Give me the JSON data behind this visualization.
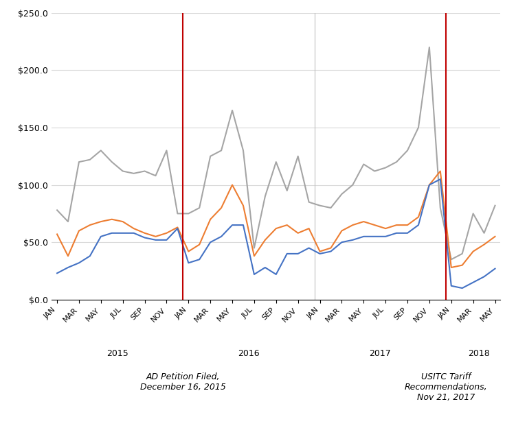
{
  "tick_labels_per_year": [
    "JAN",
    "MAR",
    "MAY",
    "JUL",
    "SEP",
    "NOV"
  ],
  "year_labels": [
    "2015",
    "2016",
    "2017",
    "2018"
  ],
  "vline_positions": [
    11.5,
    35.5
  ],
  "blue": {
    "values": [
      23,
      28,
      32,
      38,
      55,
      58,
      58,
      58,
      54,
      52,
      52,
      62,
      32,
      35,
      50,
      55,
      65,
      65,
      22,
      28,
      22,
      40,
      40,
      45,
      40,
      42,
      50,
      52,
      55,
      55,
      55,
      58,
      58,
      65,
      100,
      105,
      12,
      10,
      15,
      20,
      27
    ],
    "color": "#4472C4"
  },
  "orange": {
    "values": [
      57,
      38,
      60,
      65,
      68,
      70,
      68,
      62,
      58,
      55,
      58,
      63,
      42,
      48,
      70,
      80,
      100,
      82,
      38,
      52,
      62,
      65,
      58,
      62,
      42,
      45,
      60,
      65,
      68,
      65,
      62,
      65,
      65,
      72,
      100,
      112,
      28,
      30,
      42,
      48,
      55
    ],
    "color": "#ED7D31"
  },
  "gray": {
    "values": [
      78,
      68,
      120,
      122,
      130,
      120,
      112,
      110,
      112,
      108,
      130,
      75,
      75,
      80,
      125,
      130,
      165,
      130,
      45,
      90,
      120,
      95,
      125,
      85,
      82,
      80,
      92,
      100,
      118,
      112,
      115,
      120,
      130,
      150,
      220,
      80,
      35,
      40,
      75,
      58,
      82
    ],
    "color": "#A5A5A5"
  },
  "ylim": [
    0,
    250
  ],
  "yticks": [
    0,
    50,
    100,
    150,
    200,
    250
  ],
  "ytick_labels": [
    "$0.0",
    "$50.0",
    "$100.0",
    "$150.0",
    "$200.0",
    "$250.0"
  ],
  "grid_color": "#D9D9D9",
  "background_color": "#FFFFFF",
  "vline_color": "#C00000",
  "annotation1": "AD Petition Filed,\nDecember 16, 2015",
  "annotation2": "USITC Tariff\nRecommendations,\nNov 21, 2017"
}
